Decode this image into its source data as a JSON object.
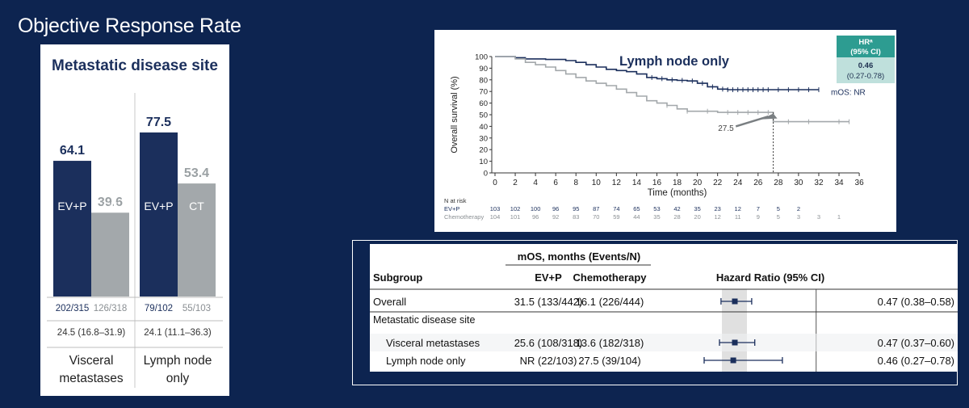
{
  "slide_title": "Objective Response Rate",
  "colors": {
    "navy": "#1b2f5c",
    "gray": "#a3a8ab",
    "teal": "#2d9c91",
    "light_teal": "#bfe0dc"
  },
  "orr": {
    "panel_title": "Metastatic disease site",
    "groups": [
      {
        "label_line1": "Visceral",
        "label_line2": "metastases",
        "bars": [
          {
            "arm": "EV+P",
            "value": 64.1,
            "value_label": "64.1",
            "responders": "202/315"
          },
          {
            "arm": "CT",
            "value": 39.6,
            "value_label": "39.6",
            "responders": "126/318"
          }
        ],
        "dor": "24.5 (16.8–31.9)"
      },
      {
        "label_line1": "Lymph node",
        "label_line2": "only",
        "bars": [
          {
            "arm": "EV+P",
            "value": 77.5,
            "value_label": "77.5",
            "responders": "79/102"
          },
          {
            "arm": "CT",
            "value": 53.4,
            "value_label": "53.4",
            "responders": "55/103"
          }
        ],
        "dor": "24.1 (11.1–36.3)"
      }
    ]
  },
  "chart_data": [
    {
      "type": "bar",
      "title": "Metastatic disease site",
      "categories": [
        "Visceral metastases",
        "Lymph node only"
      ],
      "series": [
        {
          "name": "EV+P",
          "values": [
            64.1,
            77.5
          ]
        },
        {
          "name": "CT",
          "values": [
            39.6,
            53.4
          ]
        }
      ],
      "ylim": [
        0,
        100
      ]
    },
    {
      "type": "line",
      "title": "Lymph node only",
      "xlabel": "Time (months)",
      "ylabel": "Overall survival (%)",
      "xlim": [
        0,
        36
      ],
      "ylim": [
        0,
        100
      ],
      "x_ticks": [
        0,
        2,
        4,
        6,
        8,
        10,
        12,
        14,
        16,
        18,
        20,
        22,
        24,
        26,
        28,
        30,
        32,
        34,
        36
      ],
      "y_ticks": [
        0,
        10,
        20,
        30,
        40,
        50,
        60,
        70,
        80,
        90,
        100
      ],
      "series": [
        {
          "name": "EV+P",
          "points": [
            [
              0,
              100
            ],
            [
              2,
              99
            ],
            [
              3,
              98
            ],
            [
              5,
              97.5
            ],
            [
              7,
              96.5
            ],
            [
              8,
              95
            ],
            [
              9,
              93
            ],
            [
              10,
              91
            ],
            [
              11,
              89
            ],
            [
              12,
              88
            ],
            [
              13,
              87
            ],
            [
              14,
              85
            ],
            [
              15,
              82
            ],
            [
              16,
              81
            ],
            [
              17,
              80
            ],
            [
              18,
              79.5
            ],
            [
              19,
              79
            ],
            [
              20,
              77
            ],
            [
              21,
              74
            ],
            [
              22,
              72
            ],
            [
              23,
              71.5
            ],
            [
              24,
              71.5
            ],
            [
              27,
              71.5
            ],
            [
              32,
              71.5
            ]
          ],
          "censor_x": [
            15.5,
            16.5,
            17.5,
            18.5,
            19.5,
            20.5,
            21.5,
            22.5,
            23,
            23.5,
            24,
            24.5,
            25,
            25.5,
            26,
            26.5,
            27,
            28,
            29,
            30,
            31,
            32
          ]
        },
        {
          "name": "Chemotherapy",
          "points": [
            [
              0,
              100
            ],
            [
              2,
              98
            ],
            [
              3,
              95
            ],
            [
              4,
              93
            ],
            [
              5,
              91
            ],
            [
              6,
              88
            ],
            [
              7,
              85
            ],
            [
              8,
              82
            ],
            [
              9,
              79
            ],
            [
              10,
              77
            ],
            [
              11,
              75
            ],
            [
              12,
              72
            ],
            [
              13,
              69
            ],
            [
              14,
              66
            ],
            [
              15,
              62
            ],
            [
              16,
              60
            ],
            [
              17,
              58
            ],
            [
              18,
              55
            ],
            [
              19,
              53
            ],
            [
              21,
              53
            ],
            [
              22,
              52
            ],
            [
              24,
              52
            ],
            [
              27.5,
              52
            ],
            [
              27.5,
              44
            ],
            [
              35,
              44
            ]
          ],
          "censor_x": [
            17,
            19,
            21,
            23,
            24,
            25,
            26,
            27,
            29,
            31,
            34,
            35
          ]
        }
      ],
      "annotations": {
        "hr_header": "HRᵃ",
        "hr_header2": "(95% CI)",
        "hr_value": "0.46",
        "hr_ci": "(0.27-0.78)",
        "mos_evp": "mOS: NR",
        "median_chemo": "27.5"
      },
      "n_at_risk": {
        "title": "N at risk",
        "rows": [
          {
            "name": "EV+P",
            "values": [
              "103",
              "102",
              "100",
              "96",
              "95",
              "87",
              "74",
              "65",
              "53",
              "42",
              "35",
              "23",
              "12",
              "7",
              "5",
              "2"
            ]
          },
          {
            "name": "Chemotherapy",
            "values": [
              "104",
              "101",
              "96",
              "92",
              "83",
              "70",
              "59",
              "44",
              "35",
              "28",
              "20",
              "12",
              "11",
              "9",
              "5",
              "3",
              "3",
              "1"
            ]
          }
        ]
      }
    },
    {
      "type": "table",
      "header_group": "mOS, months (Events/N)",
      "columns": [
        "Subgroup",
        "EV+P",
        "Chemotherapy",
        "Hazard Ratio (95% CI)"
      ],
      "section_label": "Metastatic disease site",
      "rows": [
        {
          "subgroup": "Overall",
          "evp": "31.5 (133/442)",
          "chemo": "16.1 (226/444)",
          "hr": 0.47,
          "lo": 0.38,
          "hi": 0.58,
          "hr_text": "0.47 (0.38–0.58)"
        },
        {
          "subgroup": "Visceral metastases",
          "evp": "25.6 (108/318)",
          "chemo": "13.6 (182/318)",
          "hr": 0.47,
          "lo": 0.37,
          "hi": 0.6,
          "hr_text": "0.47 (0.37–0.60)"
        },
        {
          "subgroup": "Lymph node only",
          "evp": "NR (22/103)",
          "chemo": "27.5 (39/104)",
          "hr": 0.46,
          "lo": 0.27,
          "hi": 0.78,
          "hr_text": "0.46 (0.27–0.78)"
        }
      ]
    }
  ]
}
